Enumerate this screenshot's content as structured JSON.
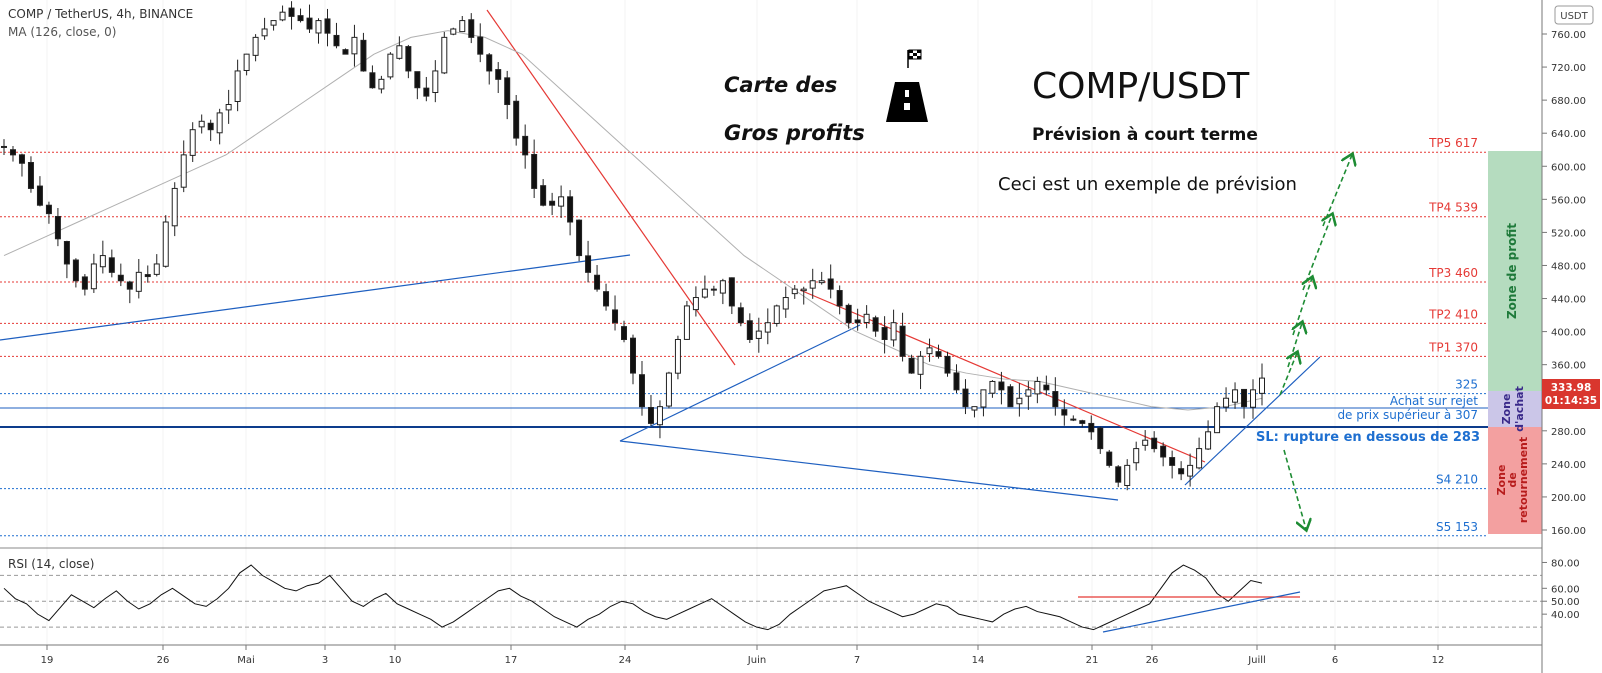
{
  "header": {
    "symbol_line": "COMP / TetherUS, 4h, BINANCE",
    "ma_line": "MA (126, close, 0)",
    "currency_badge": "USDT"
  },
  "annotations": {
    "brand_line1": "Carte des",
    "brand_line2": "Gros profits",
    "title": "COMP/USDT",
    "subtitle": "Prévision à court terme",
    "note": "Ceci est un exemple de prévision",
    "buy_line1": "Achat sur rejet",
    "buy_line2": "de prix supérieur à 307",
    "stop_loss": "SL: rupture en dessous de 283",
    "zone_profit": "Zone de profit",
    "zone_buy_line1": "Zone",
    "zone_buy_line2": "d'achat",
    "zone_reversal_line1": "Zone",
    "zone_reversal_line2": "de",
    "zone_reversal_line3": "retournement"
  },
  "chart_data": [
    {
      "type": "candlestick",
      "ylim": [
        150,
        775
      ],
      "y_ticks": [
        "760.00",
        "720.00",
        "680.00",
        "640.00",
        "600.00",
        "560.00",
        "520.00",
        "480.00",
        "440.00",
        "400.00",
        "360.00",
        "320.00",
        "280.00",
        "240.00",
        "200.00",
        "160.00"
      ],
      "x_ticks": [
        "19",
        "26",
        "Mai",
        "3",
        "10",
        "17",
        "24",
        "Juin",
        "7",
        "14",
        "21",
        "26",
        "Juill",
        "6",
        "12"
      ],
      "last_price": "333.98",
      "countdown": "01:14:35",
      "levels": [
        {
          "label": "TP5 617",
          "value": 617,
          "color": "#e53935"
        },
        {
          "label": "TP4 539",
          "value": 539,
          "color": "#e53935"
        },
        {
          "label": "TP3 460",
          "value": 460,
          "color": "#e53935"
        },
        {
          "label": "TP2 410",
          "value": 410,
          "color": "#e53935"
        },
        {
          "label": "TP1 370",
          "value": 370,
          "color": "#e53935"
        },
        {
          "label": "325",
          "value": 325,
          "color": "#1e6fd0"
        },
        {
          "label": "S4 210",
          "value": 210,
          "color": "#1e6fd0"
        },
        {
          "label": "S5 153",
          "value": 153,
          "color": "#1e6fd0"
        }
      ],
      "buy_level": 307,
      "stop_level": 283,
      "close_series": [
        610,
        600,
        590,
        560,
        540,
        530,
        500,
        470,
        450,
        440,
        470,
        480,
        460,
        450,
        440,
        460,
        455,
        470,
        520,
        560,
        600,
        630,
        640,
        630,
        650,
        660,
        700,
        720,
        740,
        750,
        760,
        770,
        765,
        760,
        750,
        760,
        745,
        730,
        720,
        740,
        700,
        680,
        690,
        720,
        730,
        700,
        680,
        670,
        700,
        740,
        750,
        760,
        740,
        720,
        700,
        690,
        660,
        620,
        600,
        560,
        540,
        540,
        550,
        520,
        480,
        460,
        440,
        420,
        400,
        380,
        340,
        300,
        280,
        300,
        340,
        380,
        420,
        430,
        440,
        440,
        450,
        420,
        400,
        380,
        390,
        400,
        420,
        430,
        440,
        440,
        450,
        450,
        440,
        420,
        400,
        400,
        410,
        390,
        380,
        400,
        360,
        340,
        360,
        370,
        360,
        340,
        320,
        300,
        300,
        320,
        330,
        320,
        300,
        310,
        320,
        330,
        320,
        300,
        290,
        285,
        280,
        270,
        250,
        230,
        210,
        230,
        250,
        260,
        250,
        240,
        230,
        220,
        230,
        250,
        270,
        300,
        310,
        320,
        300,
        320,
        334
      ],
      "ma_series": [
        480,
        500,
        520,
        540,
        560,
        580,
        600,
        630,
        660,
        690,
        720,
        740,
        748,
        740,
        720,
        680,
        640,
        600,
        560,
        520,
        480,
        450,
        420,
        390,
        370,
        350,
        340,
        333,
        330,
        320,
        310,
        300,
        296,
        300,
        310
      ],
      "rsi": {
        "label": "RSI (14, close)",
        "ylim": [
          20,
          85
        ],
        "y_ticks": [
          "80.00",
          "60.00",
          "50.00",
          "40.00"
        ],
        "bands": [
          70,
          50,
          30
        ],
        "values": [
          60,
          52,
          48,
          40,
          35,
          45,
          55,
          50,
          45,
          52,
          58,
          50,
          44,
          48,
          55,
          60,
          54,
          48,
          46,
          52,
          60,
          72,
          78,
          70,
          65,
          60,
          58,
          62,
          64,
          70,
          60,
          50,
          46,
          52,
          56,
          48,
          44,
          40,
          36,
          30,
          34,
          40,
          46,
          52,
          58,
          60,
          54,
          50,
          44,
          38,
          34,
          30,
          36,
          40,
          46,
          50,
          48,
          42,
          38,
          36,
          40,
          44,
          48,
          52,
          46,
          40,
          34,
          30,
          28,
          32,
          40,
          46,
          52,
          58,
          60,
          62,
          56,
          50,
          46,
          42,
          38,
          40,
          44,
          48,
          46,
          40,
          38,
          36,
          34,
          40,
          44,
          46,
          42,
          40,
          38,
          34,
          30,
          28,
          32,
          36,
          40,
          44,
          48,
          60,
          72,
          78,
          74,
          68,
          56,
          50,
          58,
          66,
          64
        ]
      }
    }
  ]
}
